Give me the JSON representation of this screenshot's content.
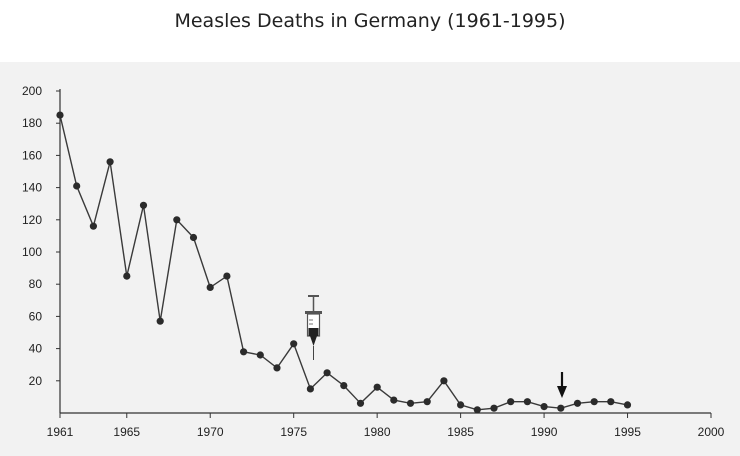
{
  "title": "Measles Deaths in Germany (1961-1995)",
  "chart_data": {
    "type": "line",
    "title": "Measles Deaths in Germany (1961-1995)",
    "xlabel": "",
    "ylabel": "",
    "xlim": [
      1961,
      2000
    ],
    "ylim": [
      0,
      200
    ],
    "x_ticks": [
      1961,
      1965,
      1970,
      1975,
      1980,
      1985,
      1990,
      1995,
      2000
    ],
    "y_ticks": [
      20,
      40,
      60,
      80,
      100,
      120,
      140,
      160,
      180,
      200
    ],
    "grid": false,
    "series": [
      {
        "x": [
          1961,
          1962,
          1963,
          1964,
          1965,
          1966,
          1967,
          1968,
          1969,
          1970,
          1971,
          1972,
          1973,
          1974,
          1975,
          1976,
          1977,
          1978,
          1979,
          1980,
          1981,
          1982,
          1983,
          1984,
          1985,
          1986,
          1987,
          1988,
          1989,
          1990,
          1991,
          1992,
          1993,
          1994,
          1995
        ],
        "values": [
          185,
          141,
          116,
          156,
          85,
          129,
          57,
          120,
          109,
          78,
          85,
          38,
          36,
          28,
          43,
          15,
          25,
          17,
          6,
          16,
          8,
          6,
          7,
          20,
          5,
          2,
          3,
          7,
          7,
          4,
          3,
          6,
          7,
          7,
          5
        ]
      }
    ],
    "annotations": [
      {
        "type": "syringe-icon",
        "x": 1976,
        "note": "vaccine introduction marker"
      },
      {
        "type": "arrow-down",
        "x": 1991
      }
    ]
  },
  "colors": {
    "line": "#3a3a3a",
    "marker": "#2b2b2b",
    "axis": "#333333",
    "background": "#f2f2f2"
  }
}
